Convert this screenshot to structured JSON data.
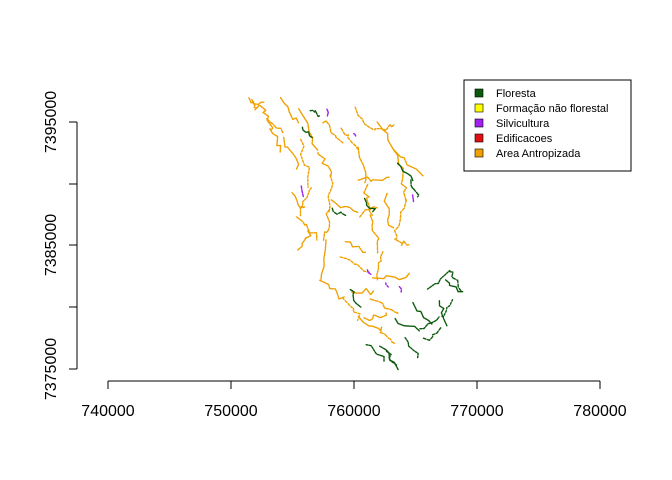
{
  "map": {
    "x_axis": {
      "range": [
        740000,
        780000
      ],
      "ticks": [
        "740000",
        "750000",
        "760000",
        "770000",
        "780000"
      ]
    },
    "y_axis": {
      "range": [
        7375000,
        7395000
      ],
      "ticks": [
        "7375000",
        "7385000",
        "7395000"
      ],
      "minor_ticks": [
        7380000,
        7390000
      ]
    },
    "legend": {
      "placement": "top-right",
      "items": [
        {
          "label": "Floresta",
          "color": "#0b5a0b"
        },
        {
          "label": "Formação não florestal",
          "color": "#ffff00"
        },
        {
          "label": "Silvicultura",
          "color": "#a020f0"
        },
        {
          "label": "Edificacoes",
          "color": "#e01010"
        },
        {
          "label": "Area Antropizada",
          "color": "#f0a000"
        }
      ]
    }
  }
}
